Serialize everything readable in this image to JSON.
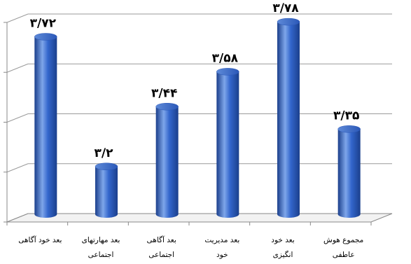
{
  "chart_data": {
    "type": "bar",
    "style": "3d-cylinder",
    "bar_color": "#3366CC",
    "bar_color_dark": "#1B3F8C",
    "bar_color_light": "#7EA6EA",
    "categories": [
      [
        "بعد خود آگاهی"
      ],
      [
        "بعد مهارتهای",
        "اجتماعی"
      ],
      [
        "بعد آگاهی",
        "اجتماعی"
      ],
      [
        "بعد مدیریت",
        "خود"
      ],
      [
        "بعد خود",
        "انگیزی"
      ],
      [
        "مجموع هوش",
        "عاطفی"
      ]
    ],
    "values": [
      3.72,
      3.2,
      3.44,
      3.58,
      3.78,
      3.35
    ],
    "value_labels": [
      "۳/۷۲",
      "۳/۲",
      "۳/۴۴",
      "۳/۵۸",
      "۳/۷۸",
      "۳/۳۵"
    ],
    "ylim": [
      3.0,
      3.8
    ],
    "yticks": [
      3.0,
      3.2,
      3.4,
      3.6,
      3.8
    ],
    "ytick_labels_visible": false,
    "grid": true,
    "legend": "none"
  }
}
